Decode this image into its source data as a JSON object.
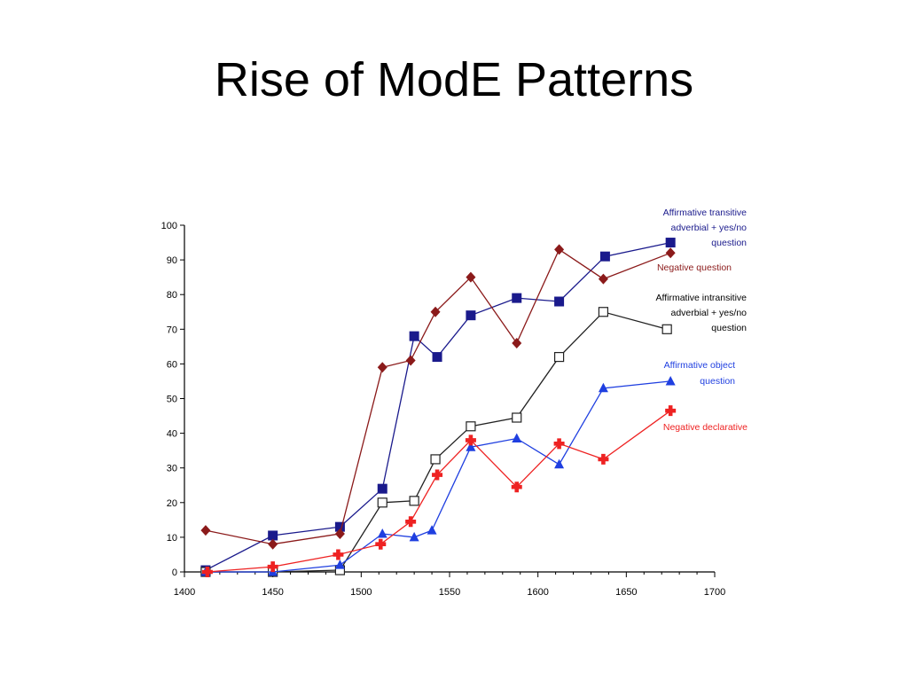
{
  "slide": {
    "title": "Rise of ModE Patterns"
  },
  "chart_data": {
    "type": "line",
    "title": "",
    "xlabel": "",
    "ylabel": "",
    "xlim": [
      1400,
      1700
    ],
    "ylim": [
      0,
      100
    ],
    "x_ticks": [
      1400,
      1450,
      1500,
      1550,
      1600,
      1650,
      1700
    ],
    "y_ticks": [
      0,
      10,
      20,
      30,
      40,
      50,
      60,
      70,
      80,
      90,
      100
    ],
    "grid": false,
    "legend_placement": "right, inline at series ends",
    "series": [
      {
        "name": "Affirmative transitive adverbial + yes/no question",
        "legend_lines": [
          "Affirmative transitive",
          "adverbial + yes/no",
          "question"
        ],
        "color": "#1a1a8c",
        "marker": "filled-square",
        "points": [
          [
            1412,
            0.5
          ],
          [
            1450,
            10.5
          ],
          [
            1488,
            13
          ],
          [
            1512,
            24
          ],
          [
            1530,
            68
          ],
          [
            1543,
            62
          ],
          [
            1562,
            74
          ],
          [
            1588,
            79
          ],
          [
            1612,
            78
          ],
          [
            1638,
            91
          ],
          [
            1675,
            95
          ]
        ]
      },
      {
        "name": "Negative question",
        "legend_lines": [
          "Negative question"
        ],
        "color": "#8b1a1a",
        "marker": "filled-diamond",
        "points": [
          [
            1412,
            12
          ],
          [
            1450,
            8
          ],
          [
            1488,
            11
          ],
          [
            1512,
            59
          ],
          [
            1528,
            61
          ],
          [
            1542,
            75
          ],
          [
            1562,
            85
          ],
          [
            1588,
            66
          ],
          [
            1612,
            93
          ],
          [
            1637,
            84.5
          ],
          [
            1675,
            92
          ]
        ]
      },
      {
        "name": "Affirmative intransitive adverbial + yes/no question",
        "legend_lines": [
          "Affirmative intransitive",
          "adverbial + yes/no",
          "question"
        ],
        "color": "#222222",
        "marker": "open-square",
        "points": [
          [
            1412,
            0
          ],
          [
            1450,
            0
          ],
          [
            1488,
            0.5
          ],
          [
            1512,
            20
          ],
          [
            1530,
            20.5
          ],
          [
            1542,
            32.5
          ],
          [
            1562,
            42
          ],
          [
            1588,
            44.5
          ],
          [
            1612,
            62
          ],
          [
            1637,
            75
          ],
          [
            1673,
            70
          ]
        ]
      },
      {
        "name": "Affirmative object question",
        "legend_lines": [
          "Affirmative object",
          "question"
        ],
        "color": "#1f3fe0",
        "marker": "filled-triangle",
        "points": [
          [
            1412,
            0
          ],
          [
            1450,
            0
          ],
          [
            1488,
            2
          ],
          [
            1512,
            11
          ],
          [
            1530,
            10
          ],
          [
            1540,
            12
          ],
          [
            1562,
            36
          ],
          [
            1588,
            38.5
          ],
          [
            1612,
            31
          ],
          [
            1637,
            53
          ],
          [
            1675,
            55
          ]
        ]
      },
      {
        "name": "Negative declarative",
        "legend_lines": [
          "Negative declarative"
        ],
        "color": "#ee2222",
        "marker": "filled-cross",
        "points": [
          [
            1413,
            0
          ],
          [
            1450,
            1.5
          ],
          [
            1487,
            5
          ],
          [
            1511,
            8
          ],
          [
            1528,
            14.5
          ],
          [
            1543,
            28
          ],
          [
            1562,
            38
          ],
          [
            1588,
            24.5
          ],
          [
            1612,
            37
          ],
          [
            1637,
            32.5
          ],
          [
            1675,
            46.5
          ]
        ]
      }
    ]
  }
}
